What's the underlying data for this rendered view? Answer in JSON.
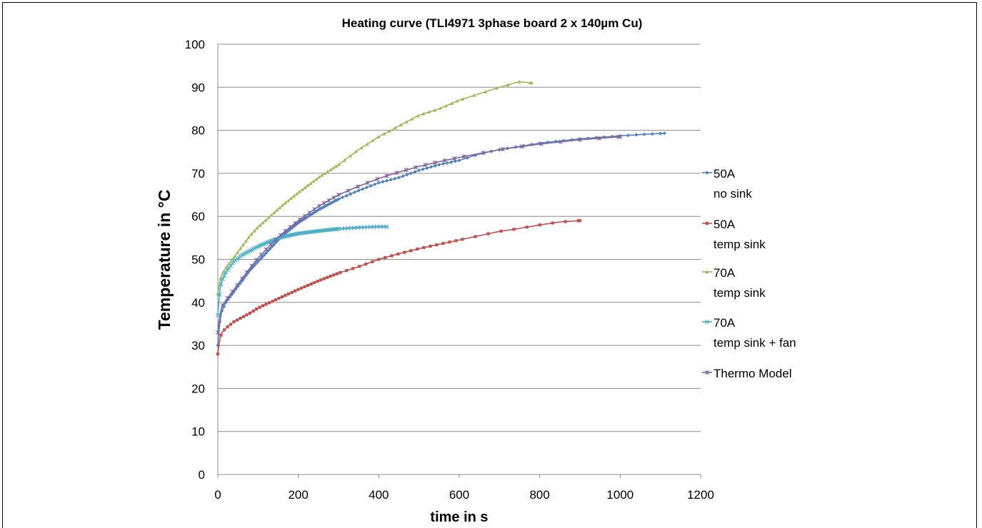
{
  "chart_data": {
    "type": "line",
    "title": "Heating curve  (TLI4971 3phase board 2 x 140µm Cu)",
    "xlabel": "time in s",
    "ylabel": "Temperature in °C",
    "xlim": [
      0,
      1200
    ],
    "ylim": [
      0,
      100
    ],
    "xticks": [
      0,
      200,
      400,
      600,
      800,
      1000,
      1200
    ],
    "yticks": [
      0,
      10,
      20,
      30,
      40,
      50,
      60,
      70,
      80,
      90,
      100
    ],
    "grid": "horizontal",
    "legend_position": "right",
    "series": [
      {
        "name": "50A\nno sink",
        "color": "#4f81bd",
        "marker": "diamond",
        "points": [
          [
            0,
            30
          ],
          [
            5,
            35.5
          ],
          [
            10,
            38
          ],
          [
            20,
            40
          ],
          [
            40,
            42.5
          ],
          [
            60,
            45
          ],
          [
            80,
            47.5
          ],
          [
            100,
            49.5
          ],
          [
            130,
            52.5
          ],
          [
            160,
            55.5
          ],
          [
            200,
            58.5
          ],
          [
            250,
            61.5
          ],
          [
            300,
            64
          ],
          [
            350,
            66
          ],
          [
            400,
            67.8
          ],
          [
            450,
            69
          ],
          [
            500,
            70.7
          ],
          [
            550,
            72
          ],
          [
            600,
            73
          ],
          [
            650,
            74.5
          ],
          [
            700,
            75.5
          ],
          [
            800,
            77
          ],
          [
            900,
            78
          ],
          [
            1000,
            78.7
          ],
          [
            1050,
            79
          ],
          [
            1110,
            79.3
          ]
        ]
      },
      {
        "name": "50A\ntemp sink",
        "color": "#c0504d",
        "marker": "square",
        "points": [
          [
            0,
            28
          ],
          [
            5,
            31.5
          ],
          [
            10,
            33
          ],
          [
            20,
            34
          ],
          [
            40,
            35.5
          ],
          [
            60,
            36.5
          ],
          [
            80,
            37.5
          ],
          [
            100,
            38.7
          ],
          [
            130,
            40
          ],
          [
            160,
            41.3
          ],
          [
            200,
            43
          ],
          [
            250,
            45
          ],
          [
            300,
            46.8
          ],
          [
            350,
            48.3
          ],
          [
            400,
            50
          ],
          [
            450,
            51.3
          ],
          [
            500,
            52.5
          ],
          [
            550,
            53.5
          ],
          [
            600,
            54.5
          ],
          [
            650,
            55.5
          ],
          [
            700,
            56.5
          ],
          [
            750,
            57.2
          ],
          [
            800,
            58
          ],
          [
            850,
            58.7
          ],
          [
            900,
            59
          ]
        ]
      },
      {
        "name": "70A\ntemp sink",
        "color": "#9bbb59",
        "marker": "triangle",
        "points": [
          [
            0,
            42
          ],
          [
            5,
            45
          ],
          [
            10,
            46.5
          ],
          [
            20,
            48
          ],
          [
            40,
            50.5
          ],
          [
            60,
            53
          ],
          [
            80,
            55.5
          ],
          [
            100,
            57.5
          ],
          [
            130,
            60
          ],
          [
            160,
            62.5
          ],
          [
            200,
            65.5
          ],
          [
            250,
            69
          ],
          [
            300,
            72
          ],
          [
            350,
            75.5
          ],
          [
            400,
            78.5
          ],
          [
            450,
            81
          ],
          [
            500,
            83.5
          ],
          [
            550,
            85
          ],
          [
            600,
            87
          ],
          [
            650,
            88.5
          ],
          [
            700,
            90
          ],
          [
            750,
            91.3
          ],
          [
            780,
            91
          ]
        ]
      },
      {
        "name": "70A\ntemp sink + fan",
        "color": "#4bacc6",
        "marker": "x",
        "points": [
          [
            0,
            37
          ],
          [
            5,
            43
          ],
          [
            10,
            45
          ],
          [
            20,
            47
          ],
          [
            40,
            49.5
          ],
          [
            60,
            51
          ],
          [
            80,
            52
          ],
          [
            100,
            53
          ],
          [
            130,
            54.2
          ],
          [
            160,
            55.2
          ],
          [
            200,
            56
          ],
          [
            250,
            56.6
          ],
          [
            300,
            57.1
          ],
          [
            350,
            57.4
          ],
          [
            400,
            57.6
          ],
          [
            420,
            57.6
          ]
        ]
      },
      {
        "name": "Thermo Model",
        "color": "#8064a2",
        "marker": "star",
        "points": [
          [
            0,
            33
          ],
          [
            5,
            37
          ],
          [
            10,
            39
          ],
          [
            20,
            40.5
          ],
          [
            40,
            43
          ],
          [
            60,
            45.5
          ],
          [
            80,
            48
          ],
          [
            100,
            50.3
          ],
          [
            130,
            53.3
          ],
          [
            160,
            56
          ],
          [
            200,
            59
          ],
          [
            250,
            62.3
          ],
          [
            300,
            65
          ],
          [
            350,
            67
          ],
          [
            400,
            68.8
          ],
          [
            450,
            70.3
          ],
          [
            500,
            71.6
          ],
          [
            550,
            72.7
          ],
          [
            600,
            73.7
          ],
          [
            650,
            74.6
          ],
          [
            700,
            75.5
          ],
          [
            800,
            76.8
          ],
          [
            900,
            77.8
          ],
          [
            1000,
            78.5
          ]
        ]
      }
    ]
  }
}
